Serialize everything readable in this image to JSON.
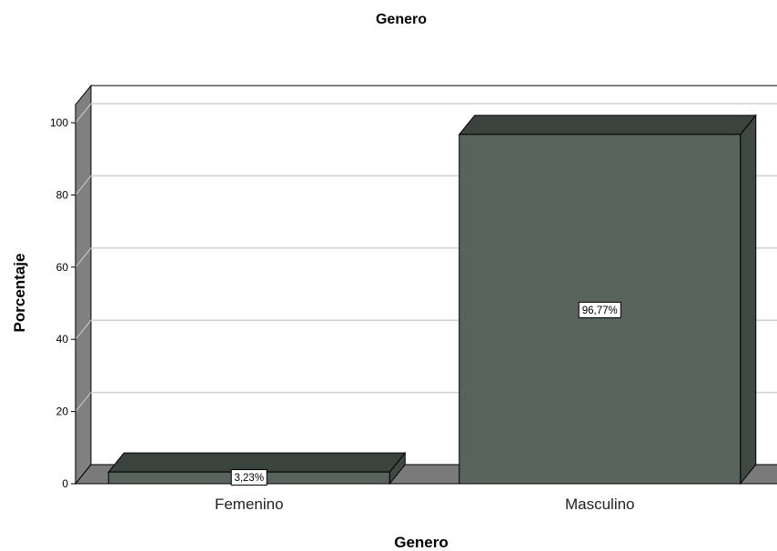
{
  "chart_data": {
    "type": "bar",
    "title": "Genero",
    "xlabel": "Genero",
    "ylabel": "Porcentaje",
    "categories": [
      "Femenino",
      "Masculino"
    ],
    "values": [
      3.23,
      96.77
    ],
    "data_labels": [
      "3,23%",
      "96,77%"
    ],
    "yticks": [
      0,
      20,
      40,
      60,
      80,
      100
    ],
    "ylim": [
      0,
      105
    ],
    "grid": true,
    "legend": "none",
    "style": "3d",
    "colors": {
      "bar_front": "#59635d",
      "bar_top": "#3a433d",
      "bar_side": "#3f4842",
      "floor": "#7a7a7a",
      "wall": "#808080",
      "grid": "#d0d0d0"
    }
  }
}
